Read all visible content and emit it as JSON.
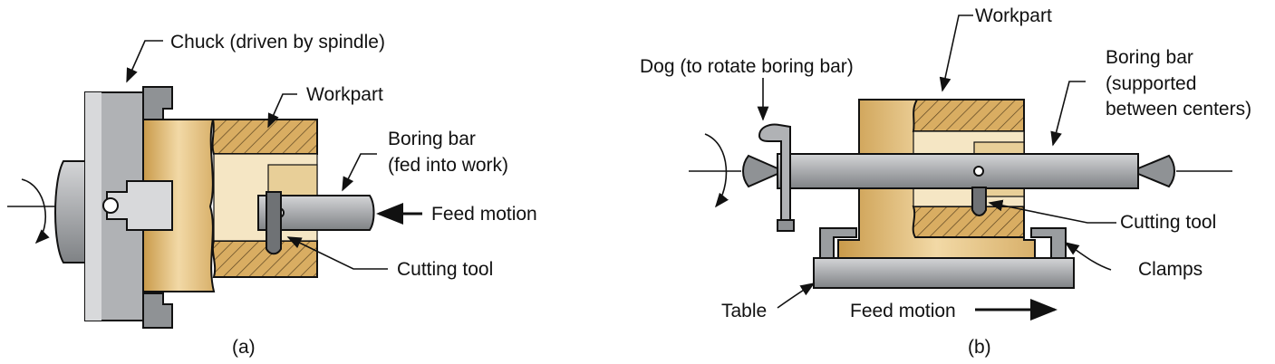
{
  "diagram_a": {
    "labels": {
      "chuck": "Chuck (driven by spindle)",
      "workpart": "Workpart",
      "boring_bar_1": "Boring bar",
      "boring_bar_2": "(fed into work)",
      "feed_motion": "Feed motion",
      "cutting_tool": "Cutting tool"
    },
    "caption": "(a)"
  },
  "diagram_b": {
    "labels": {
      "workpart": "Workpart",
      "dog": "Dog (to rotate boring bar)",
      "boring_bar_1": "Boring bar",
      "boring_bar_2": "(supported",
      "boring_bar_3": "between centers)",
      "cutting_tool": "Cutting tool",
      "clamps": "Clamps",
      "table": "Table",
      "feed_motion": "Feed motion"
    },
    "caption": "(b)"
  },
  "colors": {
    "metal": "#b9bbbd",
    "metal_dark": "#8f9295",
    "wood": "#e6c68f",
    "wood_dark": "#c79a4e",
    "outline": "#111111"
  }
}
